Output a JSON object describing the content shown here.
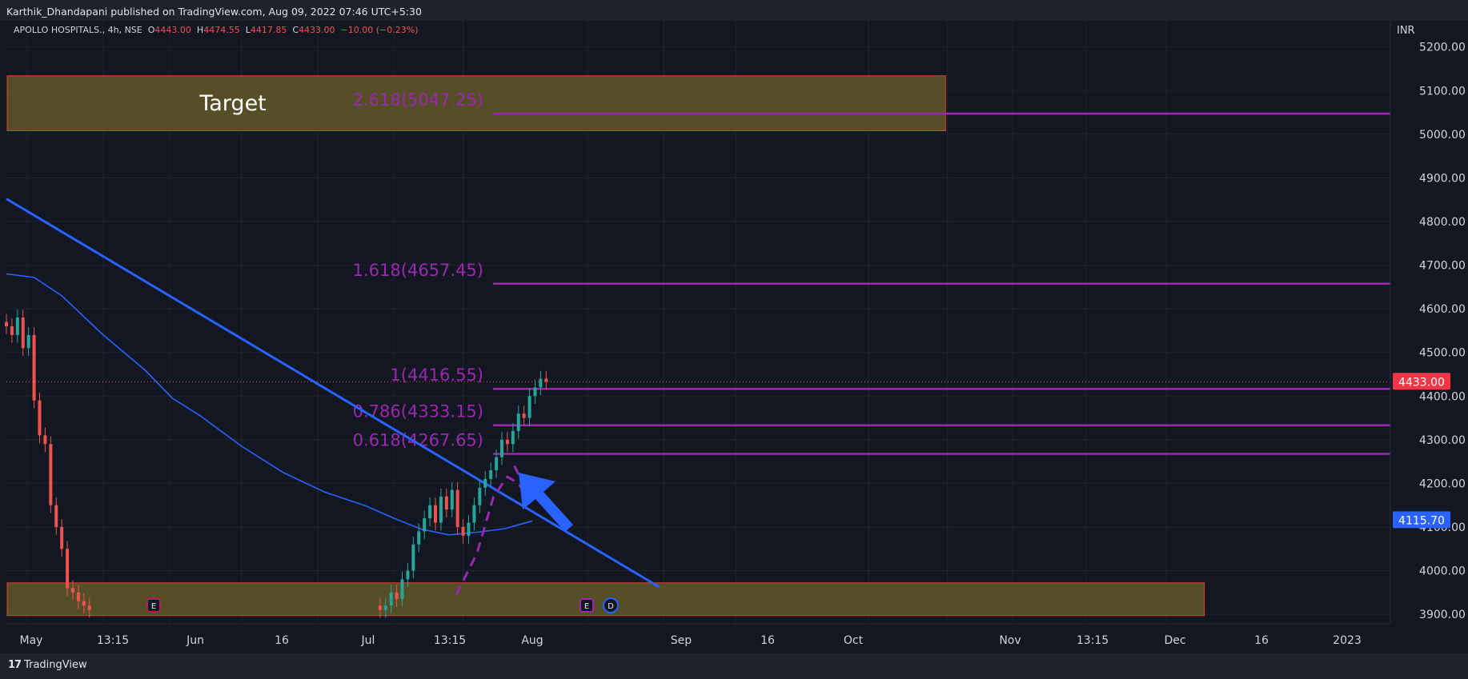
{
  "header": {
    "published_by": "Karthik_Dhandapani published on TradingView.com, Aug 09, 2022 07:46 UTC+5:30"
  },
  "footer": {
    "brand": "TradingView",
    "logo_mark": "17"
  },
  "legend": {
    "symbol": "APOLLO HOSPITALS., 4h, NSE",
    "o_label": "O",
    "o_value": "4443.00",
    "h_label": "H",
    "h_value": "4474.55",
    "l_label": "L",
    "l_value": "4417.85",
    "c_label": "C",
    "c_value": "4433.00",
    "change": "−10.00 (−0.23%)"
  },
  "colors": {
    "background": "#131722",
    "up": "#26a69a",
    "down": "#ef5350",
    "fib": "#9c27b0",
    "trendline": "#2962ff",
    "zone_fill": "#5b5328",
    "zone_border": "#f44336",
    "price_tag": "#f23645",
    "ma_tag": "#2962ff"
  },
  "chart_data": {
    "type": "candlestick",
    "currency": "INR",
    "y_axis": {
      "range": [
        3880,
        5260
      ],
      "ticks": [
        "5200.00",
        "5100.00",
        "5000.00",
        "4900.00",
        "4800.00",
        "4700.00",
        "4600.00",
        "4500.00",
        "4400.00",
        "4300.00",
        "4200.00",
        "4100.00",
        "4000.00",
        "3900.00"
      ]
    },
    "x_axis": {
      "ticks": [
        "May",
        "13:15",
        "Jun",
        "16",
        "Jul",
        "13:15",
        "Aug",
        "Sep",
        "16",
        "Oct",
        "Nov",
        "13:15",
        "Dec",
        "16",
        "2023"
      ]
    },
    "last_price": "4433.00",
    "last_price_value": 4433,
    "ma_label": "4115.70",
    "ma_value": 4115.7,
    "fib_levels": [
      {
        "label": "2.618(5047.25)",
        "value": 5047.25
      },
      {
        "label": "1.618(4657.45)",
        "value": 4657.45
      },
      {
        "label": "1(4416.55)",
        "value": 4416.55
      },
      {
        "label": "0.786(4333.15)",
        "value": 4333.15
      },
      {
        "label": "0.618(4267.65)",
        "value": 4267.65
      }
    ],
    "zones": [
      {
        "label": "Target",
        "top": 5134,
        "bottom": 5008,
        "start": 0,
        "end": 0.678
      },
      {
        "label": "",
        "top": 3972,
        "bottom": 3897,
        "start": 0,
        "end": 0.865
      }
    ],
    "trendline": {
      "from": [
        0,
        4852
      ],
      "to": [
        0.472,
        3962
      ]
    },
    "ma_curve": [
      [
        0,
        4680
      ],
      [
        0.02,
        4672
      ],
      [
        0.04,
        4630
      ],
      [
        0.07,
        4540
      ],
      [
        0.1,
        4460
      ],
      [
        0.12,
        4395
      ],
      [
        0.14,
        4355
      ],
      [
        0.17,
        4285
      ],
      [
        0.2,
        4225
      ],
      [
        0.23,
        4180
      ],
      [
        0.26,
        4148
      ],
      [
        0.28,
        4120
      ],
      [
        0.3,
        4095
      ],
      [
        0.32,
        4082
      ],
      [
        0.34,
        4088
      ],
      [
        0.36,
        4096
      ],
      [
        0.38,
        4114
      ]
    ],
    "event_markers": [
      "E",
      "E",
      "D"
    ],
    "candles_up_frac": 0.55,
    "series": [
      {
        "name": "",
        "x": [
          0,
          0.004,
          0.008,
          0.012,
          0.016,
          0.02,
          0.024,
          0.028,
          0.032,
          0.036,
          0.04,
          0.044,
          0.048,
          0.052,
          0.056,
          0.06
        ],
        "close": [
          4560,
          4540,
          4580,
          4510,
          4540,
          4390,
          4310,
          4290,
          4150,
          4100,
          4050,
          3960,
          3950,
          3930,
          3920,
          3910
        ]
      },
      {
        "name": "",
        "x": [
          0.27,
          0.274,
          0.278,
          0.282,
          0.286,
          0.29,
          0.294,
          0.298,
          0.302,
          0.306,
          0.31,
          0.314,
          0.318,
          0.322,
          0.326,
          0.33,
          0.334,
          0.338,
          0.342,
          0.346,
          0.35,
          0.354,
          0.358,
          0.362,
          0.366,
          0.37,
          0.374,
          0.378,
          0.382,
          0.386,
          0.39
        ],
        "close": [
          3910,
          3920,
          3950,
          3935,
          3980,
          4000,
          4060,
          4090,
          4120,
          4150,
          4110,
          4170,
          4140,
          4185,
          4100,
          4080,
          4110,
          4150,
          4190,
          4210,
          4230,
          4260,
          4300,
          4290,
          4320,
          4360,
          4350,
          4400,
          4420,
          4440,
          4433
        ]
      }
    ]
  }
}
